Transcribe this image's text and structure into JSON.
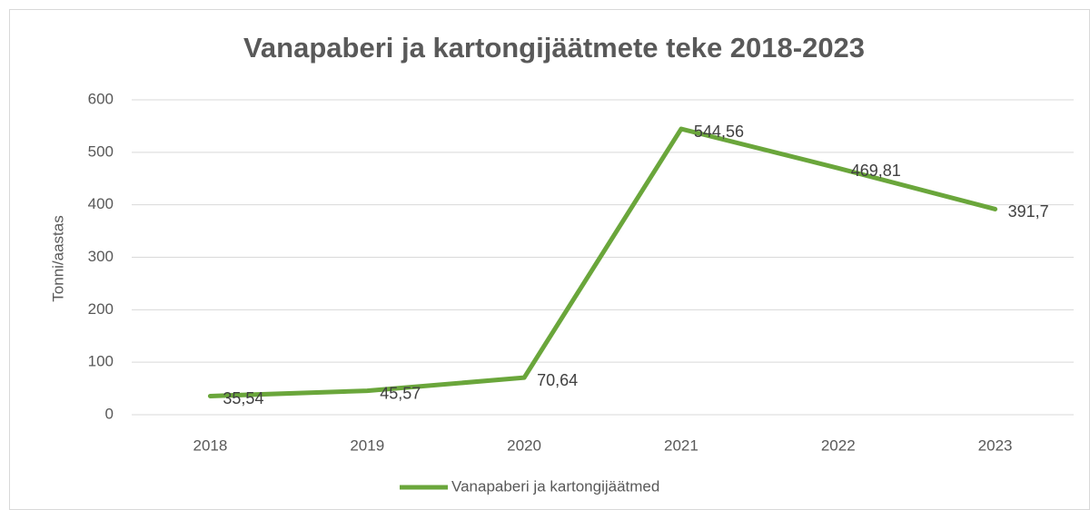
{
  "chart_data": {
    "type": "line",
    "title": "Vanapaberi ja kartongijäätmete teke 2018-2023",
    "ylabel": "Tonni/aastas",
    "categories": [
      "2018",
      "2019",
      "2020",
      "2021",
      "2022",
      "2023"
    ],
    "series": [
      {
        "name": "Vanapaberi ja kartongijäätmed",
        "color": "#6aa63b",
        "values": [
          35.54,
          45.57,
          70.64,
          544.56,
          469.81,
          391.7
        ],
        "value_labels": [
          "35,54",
          "45,57",
          "70,64",
          "544,56",
          "469,81",
          "391,7"
        ]
      }
    ],
    "ylim": [
      0,
      600
    ],
    "yticks": [
      0,
      100,
      200,
      300,
      400,
      500,
      600
    ],
    "grid": true,
    "legend": "bottom"
  }
}
